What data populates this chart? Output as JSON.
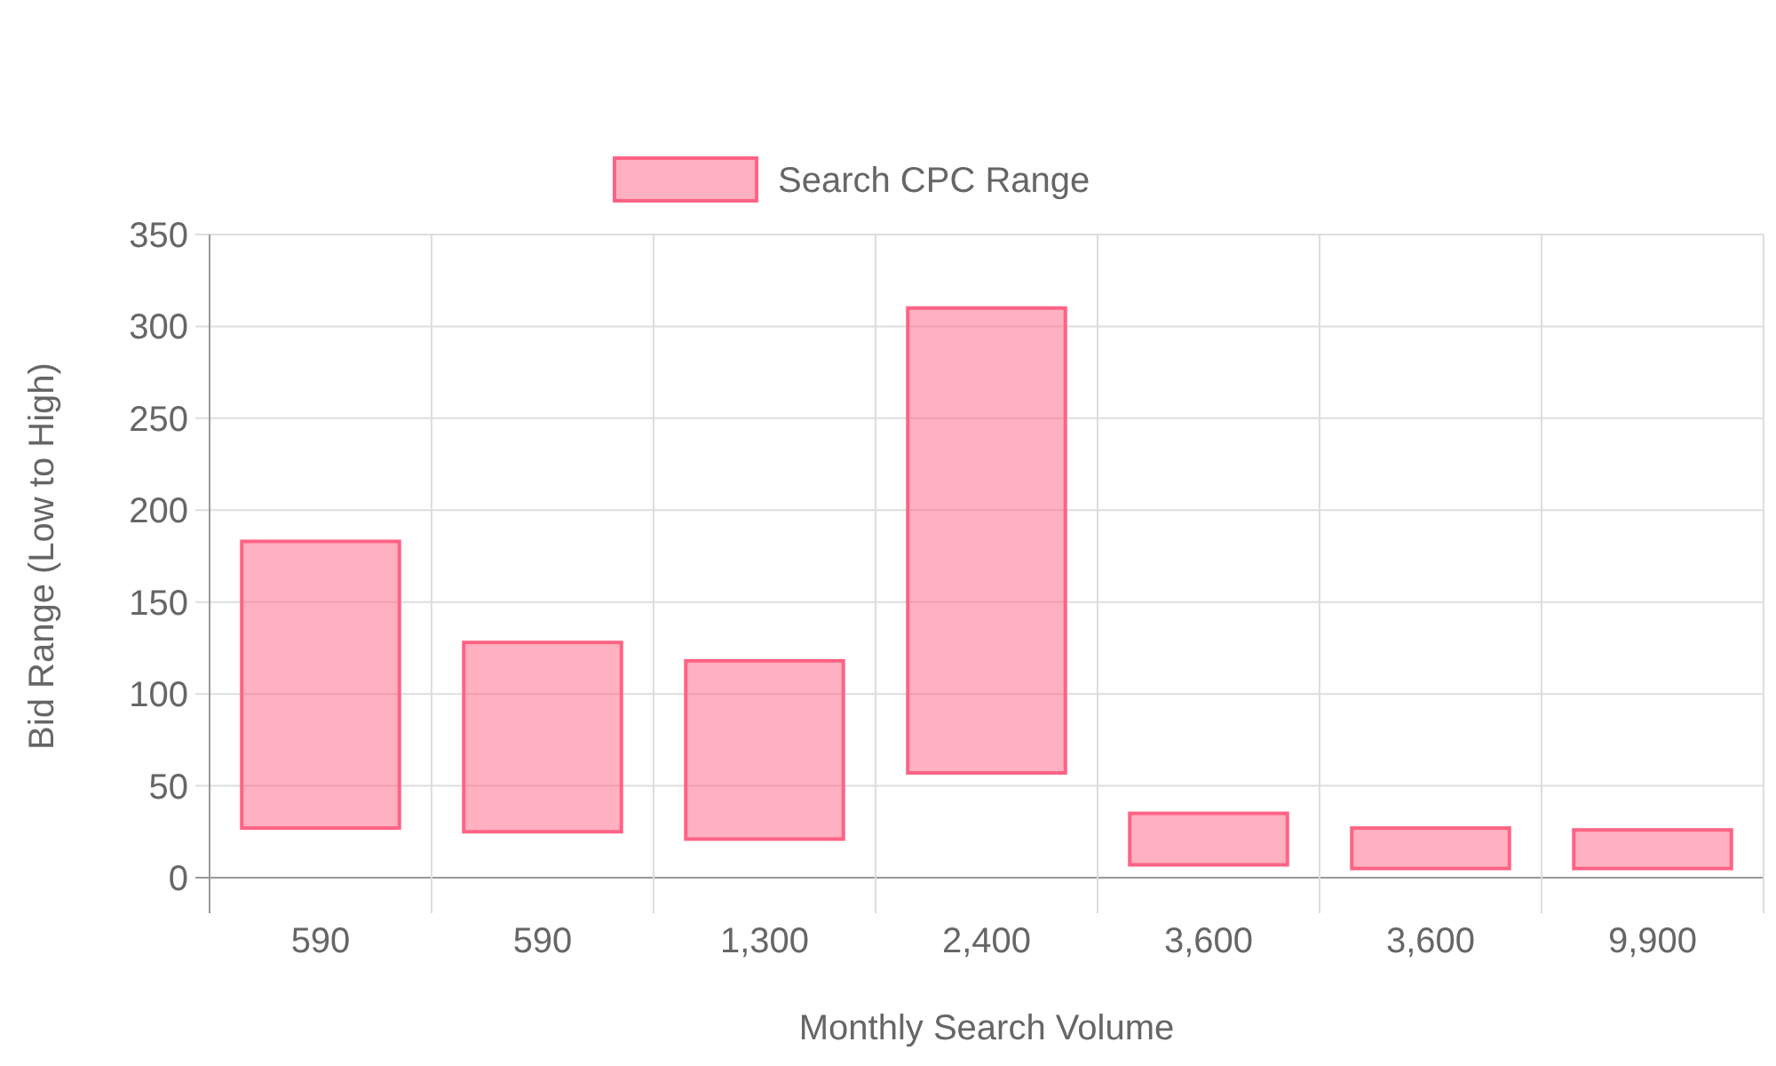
{
  "chart_data": {
    "type": "bar",
    "categories": [
      "590",
      "590",
      "1,300",
      "2,400",
      "3,600",
      "3,600",
      "9,900"
    ],
    "series": [
      {
        "name": "Search CPC Range",
        "color": "#ff6384",
        "values": [
          156,
          103,
          97,
          253,
          28,
          22,
          21
        ],
        "base": [
          27,
          25,
          21,
          57,
          7,
          5,
          5
        ]
      }
    ],
    "xlabel": "Monthly Search Volume",
    "ylabel": "Bid Range (Low to High)",
    "ylim": [
      0,
      350
    ],
    "yticks": [
      0,
      50,
      100,
      150,
      200,
      250,
      300,
      350
    ],
    "grid": true,
    "legend": "top"
  }
}
